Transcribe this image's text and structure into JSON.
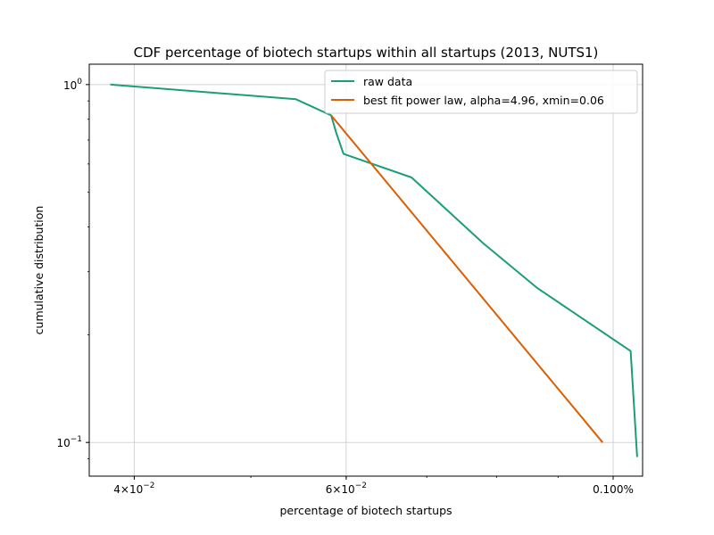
{
  "chart_data": {
    "type": "line",
    "title": "CDF percentage of biotech startups within all startups (2013, NUTS1)",
    "xlabel": "percentage of biotech startups",
    "ylabel": "cumulative distribution",
    "x_scale": "log",
    "y_scale": "log",
    "xlim": [
      0.0367,
      0.1058
    ],
    "ylim": [
      0.0805,
      1.14
    ],
    "grid": true,
    "legend_position": "top-right",
    "x_ticks": [
      {
        "value": 0.04,
        "base": "4×10",
        "exp": "−2"
      },
      {
        "value": 0.06,
        "base": "6×10",
        "exp": "−2"
      },
      {
        "value": 0.1,
        "label": "0.100%"
      }
    ],
    "y_ticks": [
      {
        "value": 1.0,
        "base": "10",
        "exp": "0"
      },
      {
        "value": 0.1,
        "base": "10",
        "exp": "−1"
      }
    ],
    "series": [
      {
        "name": "raw data",
        "color": "#1b9e77",
        "x": [
          0.0382,
          0.0545,
          0.0583,
          0.0589,
          0.0597,
          0.068,
          0.078,
          0.0865,
          0.1034,
          0.1047
        ],
        "y": [
          1.0,
          0.91,
          0.82,
          0.73,
          0.64,
          0.55,
          0.36,
          0.27,
          0.18,
          0.091
        ]
      },
      {
        "name": "best fit power law, alpha=4.96, xmin=0.06",
        "color": "#d95f02",
        "x": [
          0.0583,
          0.098
        ],
        "y": [
          0.82,
          0.1
        ]
      }
    ]
  }
}
